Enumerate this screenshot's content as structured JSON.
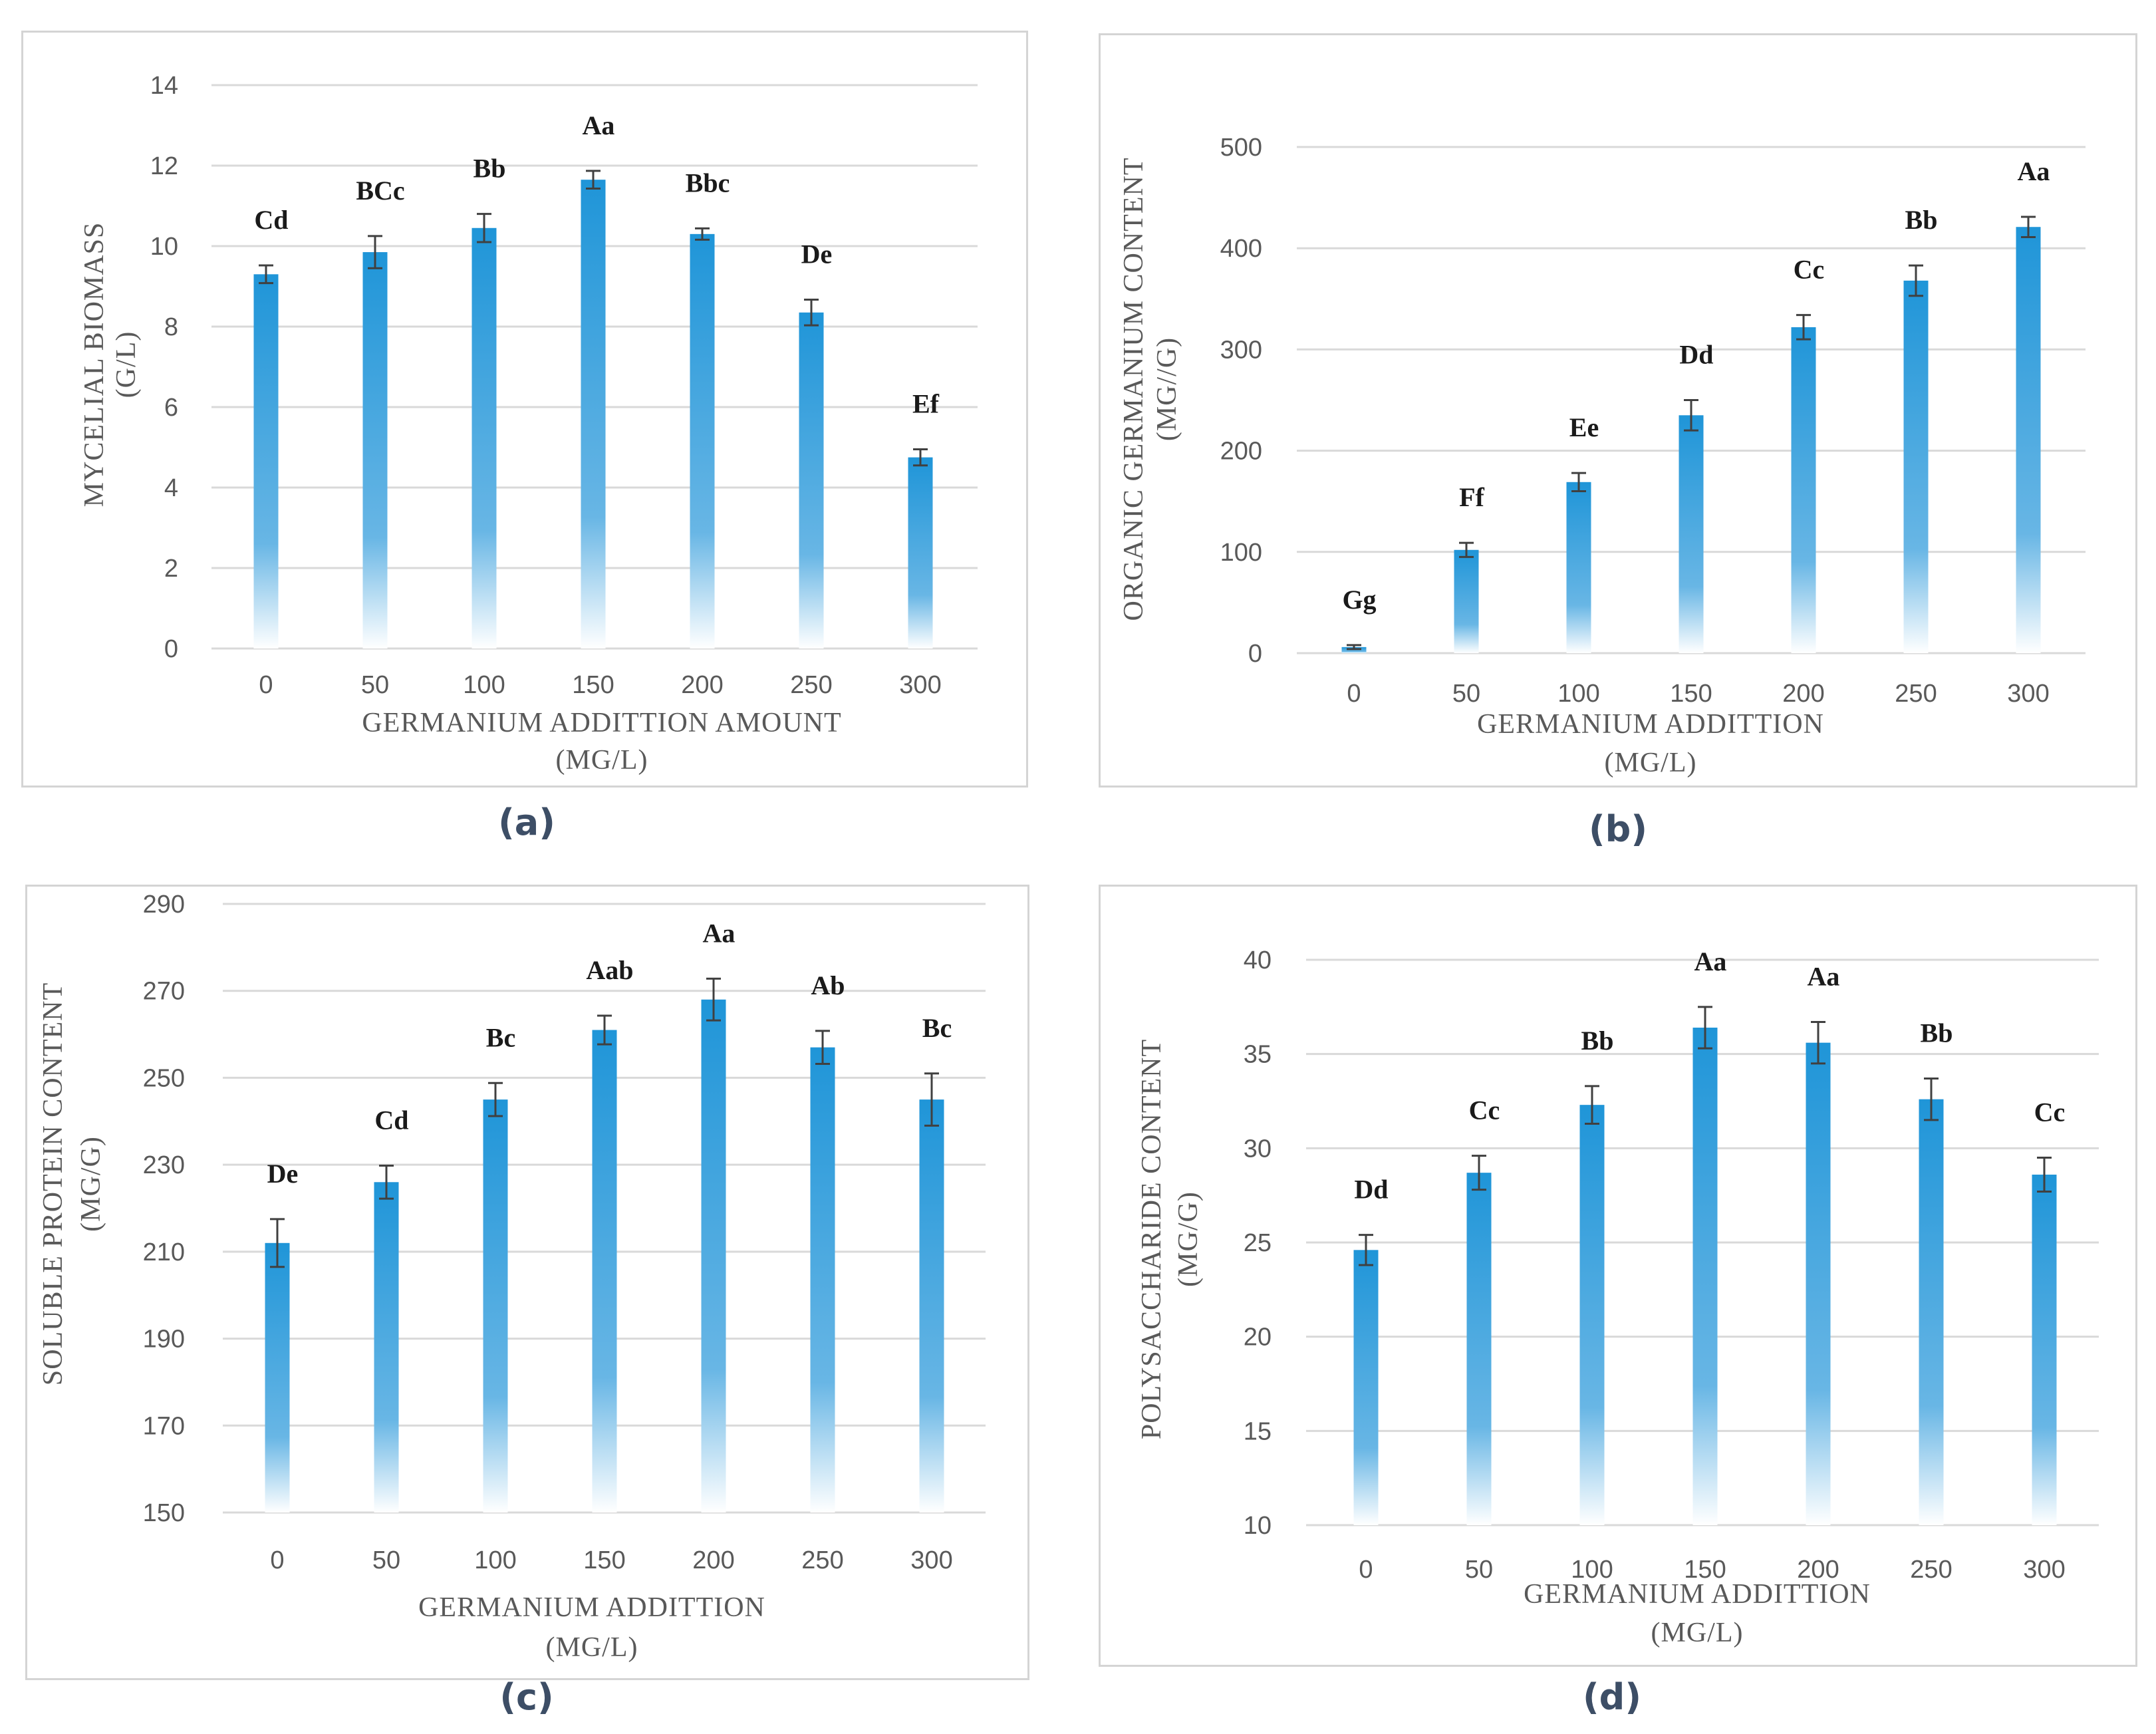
{
  "colors": {
    "bar_top": "#1f95d8",
    "bar_bottom": "#ffffff",
    "grid": "#d9d9d9",
    "error_bar": "#404040",
    "caption": "#3d4e66"
  },
  "chart_data": [
    {
      "panel": "(a)",
      "type": "bar",
      "categories": [
        "0",
        "50",
        "100",
        "150",
        "200",
        "250",
        "300"
      ],
      "values": [
        9.3,
        9.85,
        10.45,
        11.65,
        10.3,
        8.35,
        4.75
      ],
      "errors": [
        0.22,
        0.4,
        0.35,
        0.22,
        0.14,
        0.32,
        0.2
      ],
      "labels": [
        "Cd",
        "BCc",
        "Bb",
        "Aa",
        "Bbc",
        "De",
        "Ef"
      ],
      "yticks": [
        "0",
        "2",
        "4",
        "6",
        "8",
        "10",
        "12",
        "14"
      ],
      "ylim": [
        0,
        14
      ],
      "ylabel_lines": [
        "MYCELIAL BIOMASS",
        "(G/L)"
      ],
      "xlabel_lines": [
        "GERMANIUM ADDITTION AMOUNT",
        "(MG/L)"
      ]
    },
    {
      "panel": "(b)",
      "type": "bar",
      "categories": [
        "0",
        "50",
        "100",
        "150",
        "200",
        "250",
        "300"
      ],
      "values": [
        6,
        102,
        169,
        235,
        322,
        368,
        421
      ],
      "errors": [
        2,
        7,
        9,
        15,
        12,
        15,
        10
      ],
      "labels": [
        "Gg",
        "Ff",
        "Ee",
        "Dd",
        "Cc",
        "Bb",
        "Aa"
      ],
      "yticks": [
        "0",
        "100",
        "200",
        "300",
        "400",
        "500"
      ],
      "ylim": [
        0,
        500
      ],
      "ylabel_lines": [
        "ORGANIC GERMANIUM CONTENT",
        "(MG//G)"
      ],
      "xlabel_lines": [
        "GERMANIUM ADDITTION",
        "(MG/L)"
      ]
    },
    {
      "panel": "(c)",
      "type": "bar",
      "categories": [
        "0",
        "50",
        "100",
        "150",
        "200",
        "250",
        "300"
      ],
      "values": [
        212,
        226,
        245,
        261,
        268,
        257,
        245
      ],
      "errors": [
        5.5,
        3.8,
        3.8,
        3.3,
        4.8,
        3.8,
        6
      ],
      "labels": [
        "De",
        "Cd",
        "Bc",
        "Aab",
        "Aa",
        "Ab",
        "Bc"
      ],
      "yticks": [
        "150",
        "170",
        "190",
        "210",
        "230",
        "250",
        "270",
        "290"
      ],
      "ylim": [
        150,
        290
      ],
      "ylabel_lines": [
        "SOLUBLE PROTEIN CONTENT",
        "(MG/G)"
      ],
      "xlabel_lines": [
        "GERMANIUM ADDITTION",
        "(MG/L)"
      ]
    },
    {
      "panel": "(d)",
      "type": "bar",
      "categories": [
        "0",
        "50",
        "100",
        "150",
        "200",
        "250",
        "300"
      ],
      "values": [
        24.6,
        28.7,
        32.3,
        36.4,
        35.6,
        32.6,
        28.6
      ],
      "errors": [
        0.8,
        0.9,
        1.0,
        1.1,
        1.1,
        1.1,
        0.9
      ],
      "labels": [
        "Dd",
        "Cc",
        "Bb",
        "Aa",
        "Aa",
        "Bb",
        "Cc"
      ],
      "yticks": [
        "10",
        "15",
        "20",
        "25",
        "30",
        "35",
        "40"
      ],
      "ylim": [
        10,
        40
      ],
      "ylabel_lines": [
        "POLYSACCHARIDE CONTENT",
        "(MG/G)"
      ],
      "xlabel_lines": [
        "GERMANIUM ADDITTION",
        "(MG/L)"
      ]
    }
  ]
}
